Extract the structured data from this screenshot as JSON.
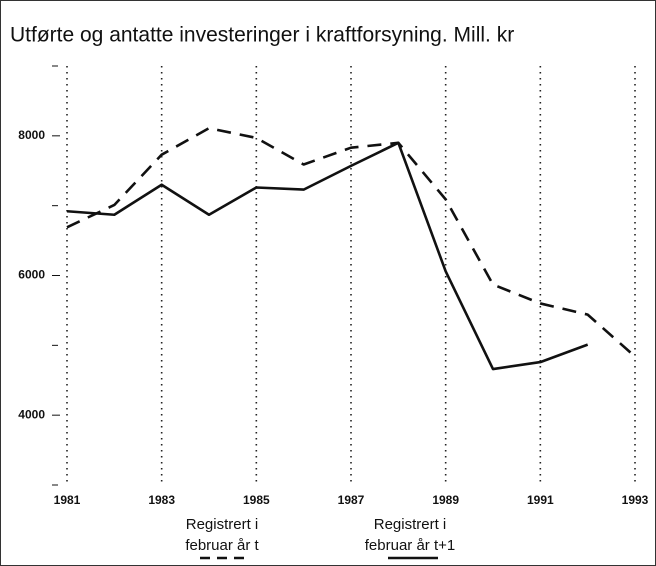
{
  "chart_data": {
    "type": "line",
    "title": "Utførte og antatte investeringer i kraftforsyning. Mill. kr",
    "x": [
      1981,
      1982,
      1983,
      1984,
      1985,
      1986,
      1987,
      1988,
      1989,
      1990,
      1991,
      1992,
      1993
    ],
    "xlim": [
      1981,
      1993
    ],
    "xticks": [
      1981,
      1983,
      1985,
      1987,
      1989,
      1991,
      1993
    ],
    "ylim": [
      3000,
      9000
    ],
    "yticks": [
      4000,
      6000,
      8000
    ],
    "yminorticks": [
      3000,
      5000,
      7000,
      9000
    ],
    "grid": true,
    "series": [
      {
        "name": "Registrert i februar år t",
        "color": "#111111",
        "dash": true,
        "values": [
          6690,
          7010,
          7730,
          8110,
          7970,
          7590,
          7830,
          7900,
          7090,
          5870,
          5600,
          5440,
          4840
        ]
      },
      {
        "name": "Registrert i februar år t+1",
        "color": "#111111",
        "dash": false,
        "values": [
          6920,
          6870,
          7300,
          6870,
          7260,
          7230,
          7570,
          7900,
          6060,
          4660,
          4760,
          5010,
          null
        ]
      }
    ]
  }
}
